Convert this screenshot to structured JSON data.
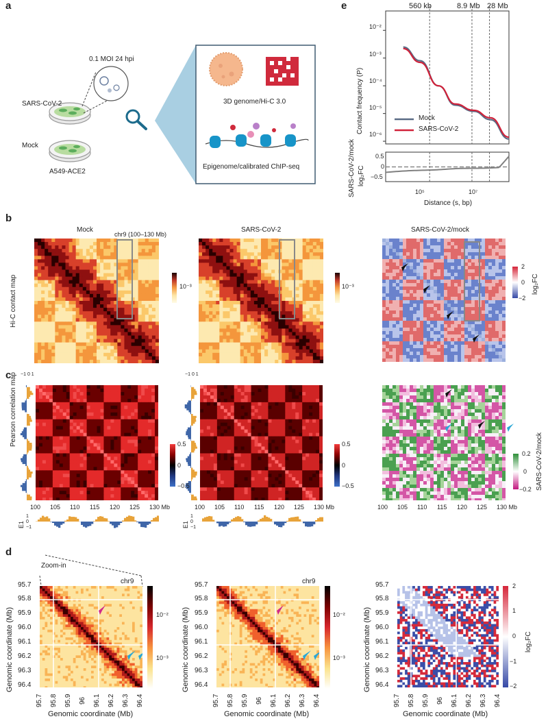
{
  "panels": {
    "a": "a",
    "b": "b",
    "c": "c",
    "d": "d",
    "e": "e"
  },
  "panel_a": {
    "moi": "0.1 MOI 24 hpi",
    "row1": "SARS-CoV-2",
    "row2": "Mock",
    "cell_line": "A549-ACE2",
    "hic": "3D genome/Hi-C 3.0",
    "chip": "Epigenome/calibrated ChIP-seq"
  },
  "panel_b": {
    "ylabel": "Hi-C contact map",
    "titles": [
      "Mock",
      "SARS-CoV-2",
      "SARS-CoV-2/mock"
    ],
    "region": "chr9 (100–130 Mb)",
    "cbar_tick": "10⁻³",
    "fc_ticks": [
      "2",
      "0",
      "−2"
    ],
    "fc_label": "log₂FC"
  },
  "panel_c": {
    "ylabel": "Pearson correlation map",
    "pc_ticks": [
      "0.5",
      "0",
      "−0.5"
    ],
    "diff_ticks": [
      "0.2",
      "0",
      "−0.2"
    ],
    "diff_label": "SARS-CoV-2/mock",
    "xticks": [
      "100",
      "105",
      "110",
      "115",
      "120",
      "125",
      "130 Mb"
    ],
    "e1": "E1",
    "e1_ticks": [
      "1",
      "0",
      "−1"
    ],
    "side_ticks": [
      "1",
      "0",
      "−1"
    ]
  },
  "panel_d": {
    "zoom": "Zoom-in",
    "chr": "chr9",
    "yticks": [
      "95.7",
      "95.8",
      "95.9",
      "96.0",
      "96.1",
      "96.2",
      "96.3",
      "96.4"
    ],
    "xticks": [
      "95.7",
      "95.8",
      "95.9",
      "96",
      "96.1",
      "96.2",
      "96.3",
      "96.4"
    ],
    "xlabel": "Genomic coordinate (Mb)",
    "ylabel": "Genomic coordinate (Mb)",
    "cb_hi": "10⁻²",
    "cb_lo": "10⁻³",
    "fc_ticks": [
      "2",
      "1",
      "0",
      "−1",
      "−2"
    ],
    "fc_label": "log₂FC"
  },
  "panel_e": {
    "markers": [
      "560 kb",
      "8.9 Mb",
      "28 Mb"
    ],
    "yticks": [
      "10⁻²",
      "10⁻³",
      "10⁻⁴",
      "10⁻⁵",
      "10⁻⁶"
    ],
    "ylabel": "Contact frequency (P)",
    "legend_mock": "Mock",
    "legend_sars": "SARS-CoV-2",
    "fc_yticks": [
      "0.5",
      "0",
      "−0.5"
    ],
    "fc_ylabel1": "SARS-CoV-2/mock",
    "fc_ylabel2": "log₂FC",
    "xticks": [
      "10⁵",
      "10⁷"
    ],
    "xlabel": "Distance (s, bp)",
    "colors": {
      "mock": "#5a6b85",
      "sars": "#d0223a"
    }
  },
  "chart_data": {
    "type": "line",
    "title": "",
    "xlabel": "Distance (s, bp)",
    "ylabel": "Contact frequency (P)",
    "xscale": "log",
    "yscale": "log",
    "x": [
      10000,
      30000,
      100000,
      300000,
      1000000,
      3000000,
      10000000,
      30000000,
      100000000
    ],
    "series": [
      {
        "name": "Mock",
        "values": [
          0.03,
          0.008,
          0.0025,
          0.0008,
          0.0001,
          2e-05,
          1.2e-05,
          6e-06,
          1.2e-06
        ]
      },
      {
        "name": "SARS-CoV-2",
        "values": [
          0.022,
          0.007,
          0.0022,
          0.0007,
          0.0001,
          2.2e-05,
          1.3e-05,
          7e-06,
          1.4e-06
        ]
      }
    ],
    "ylim": [
      8e-07,
      0.05
    ],
    "xlim": [
      10000,
      150000000
    ],
    "vlines": [
      560000,
      8900000,
      28000000
    ]
  }
}
